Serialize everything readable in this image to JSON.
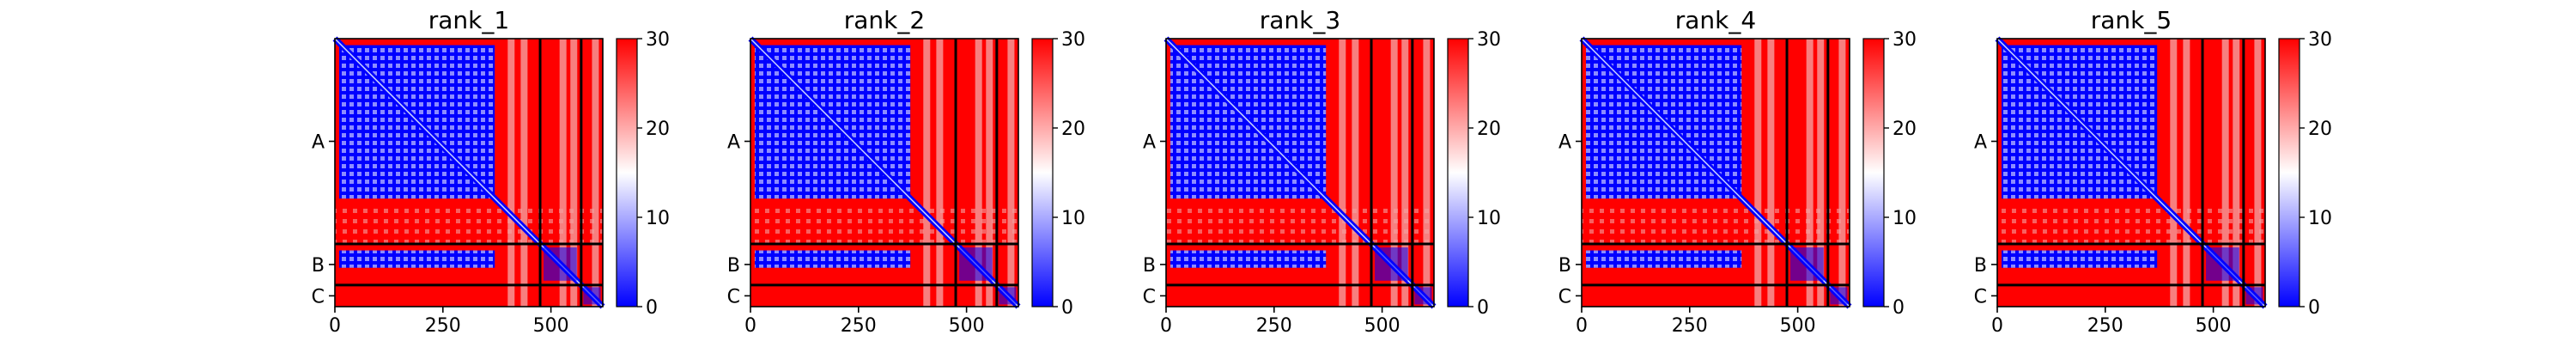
{
  "colors": {
    "low": "#0000ff",
    "mid": "#ffffff",
    "high": "#ff0000",
    "divider": "#000000"
  },
  "chart_data": [
    {
      "type": "heatmap",
      "title": "rank_1",
      "x_ticks": [
        0,
        250,
        500
      ],
      "xlim": [
        0,
        620
      ],
      "ylim": [
        620,
        0
      ],
      "chains": [
        {
          "label": "A",
          "start": 0,
          "end": 475
        },
        {
          "label": "B",
          "start": 475,
          "end": 570
        },
        {
          "label": "C",
          "start": 570,
          "end": 620
        }
      ],
      "colorbar": {
        "min": 0,
        "max": 30,
        "ticks": [
          0,
          10,
          20,
          30
        ]
      }
    },
    {
      "type": "heatmap",
      "title": "rank_2",
      "x_ticks": [
        0,
        250,
        500
      ],
      "xlim": [
        0,
        620
      ],
      "ylim": [
        620,
        0
      ],
      "chains": [
        {
          "label": "A",
          "start": 0,
          "end": 475
        },
        {
          "label": "B",
          "start": 475,
          "end": 570
        },
        {
          "label": "C",
          "start": 570,
          "end": 620
        }
      ],
      "colorbar": {
        "min": 0,
        "max": 30,
        "ticks": [
          0,
          10,
          20,
          30
        ]
      }
    },
    {
      "type": "heatmap",
      "title": "rank_3",
      "x_ticks": [
        0,
        250,
        500
      ],
      "xlim": [
        0,
        620
      ],
      "ylim": [
        620,
        0
      ],
      "chains": [
        {
          "label": "A",
          "start": 0,
          "end": 475
        },
        {
          "label": "B",
          "start": 475,
          "end": 570
        },
        {
          "label": "C",
          "start": 570,
          "end": 620
        }
      ],
      "colorbar": {
        "min": 0,
        "max": 30,
        "ticks": [
          0,
          10,
          20,
          30
        ]
      }
    },
    {
      "type": "heatmap",
      "title": "rank_4",
      "x_ticks": [
        0,
        250,
        500
      ],
      "xlim": [
        0,
        620
      ],
      "ylim": [
        620,
        0
      ],
      "chains": [
        {
          "label": "A",
          "start": 0,
          "end": 475
        },
        {
          "label": "B",
          "start": 475,
          "end": 570
        },
        {
          "label": "C",
          "start": 570,
          "end": 620
        }
      ],
      "colorbar": {
        "min": 0,
        "max": 30,
        "ticks": [
          0,
          10,
          20,
          30
        ]
      }
    },
    {
      "type": "heatmap",
      "title": "rank_5",
      "x_ticks": [
        0,
        250,
        500
      ],
      "xlim": [
        0,
        620
      ],
      "ylim": [
        620,
        0
      ],
      "chains": [
        {
          "label": "A",
          "start": 0,
          "end": 475
        },
        {
          "label": "B",
          "start": 475,
          "end": 570
        },
        {
          "label": "C",
          "start": 570,
          "end": 620
        }
      ],
      "colorbar": {
        "min": 0,
        "max": 30,
        "ticks": [
          0,
          10,
          20,
          30
        ]
      }
    }
  ]
}
